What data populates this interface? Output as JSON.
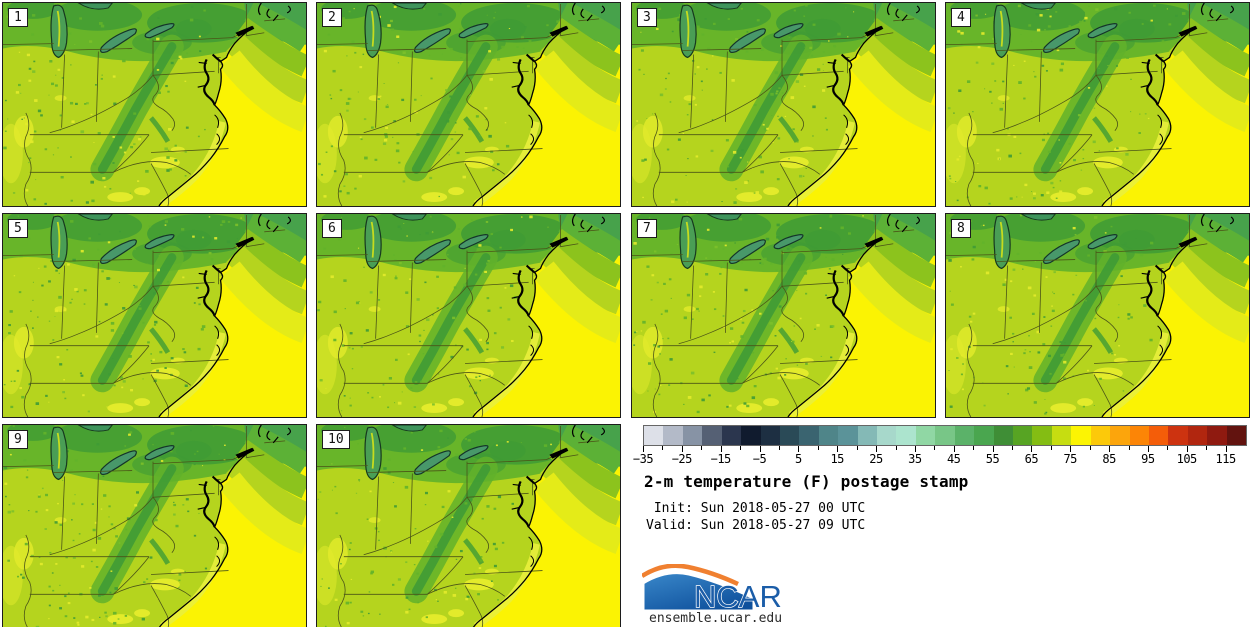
{
  "panels": {
    "labels": [
      "1",
      "2",
      "3",
      "4",
      "5",
      "6",
      "7",
      "8",
      "9",
      "10"
    ]
  },
  "colorbar": {
    "range_min": -35,
    "range_max": 120,
    "segment_step": 5,
    "segment_colors": [
      "#dde0e8",
      "#b3bac8",
      "#8793a5",
      "#556074",
      "#2b364e",
      "#101b2e",
      "#1d2f42",
      "#2a4a57",
      "#3a6470",
      "#4f8589",
      "#5b9399",
      "#84b9b6",
      "#a7d8cb",
      "#ace4ce",
      "#90d7a4",
      "#78c687",
      "#5bb269",
      "#4aa64f",
      "#3f8e36",
      "#57a423",
      "#84bd13",
      "#c6dd11",
      "#fcf403",
      "#fcc90a",
      "#fca50c",
      "#fc8506",
      "#f45d09",
      "#cd3310",
      "#b1260f",
      "#8f1a10",
      "#62130f"
    ],
    "tick_values": [
      -35,
      -25,
      -15,
      -5,
      5,
      15,
      25,
      35,
      45,
      55,
      65,
      75,
      85,
      95,
      105,
      115
    ],
    "tick_labels": [
      "−35",
      "−25",
      "−15",
      "−5",
      "5",
      "15",
      "25",
      "35",
      "45",
      "55",
      "65",
      "75",
      "85",
      "95",
      "105",
      "115"
    ]
  },
  "caption": {
    "title": "2-m temperature (F) postage stamp",
    "init_line": " Init: Sun 2018-05-27 00 UTC",
    "valid_line": "Valid: Sun 2018-05-27 09 UTC"
  },
  "branding": {
    "logo_text": "NCAR",
    "site_url": "ensemble.ucar.edu",
    "logo_blue": "#1b5da8",
    "logo_orange": "#f08030"
  },
  "map_palette": {
    "land_base": "#b5d41e",
    "land_pale": "#e3eb2b",
    "green_mid": "#62b22a",
    "green_dark": "#3f9b35",
    "ocean_yellow": "#fbf303",
    "ocean_pale_band": "#e4eb18",
    "ocean_green_band": "#8cc31d",
    "ocean_dark_green": "#47a24b",
    "lake_fill": "#4a9e55",
    "lake_outline": "#16381e",
    "coastline": "#000000",
    "state_border": "#4b5517"
  }
}
